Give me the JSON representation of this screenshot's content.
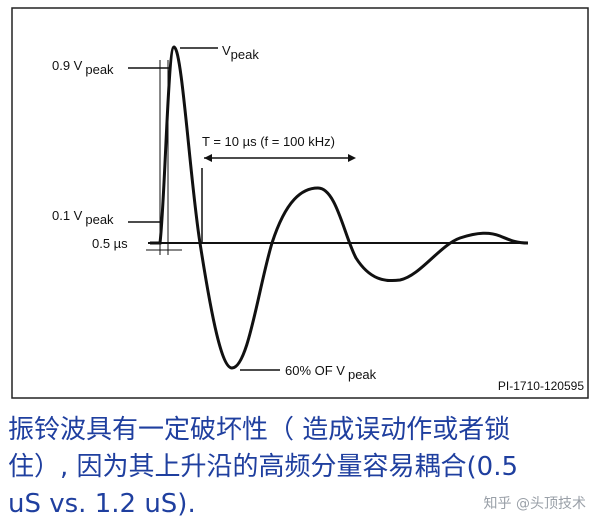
{
  "figure": {
    "labels": {
      "v_peak": {
        "text": "V",
        "sub": "peak"
      },
      "v09": {
        "text": "0.9 V",
        "sub": "peak"
      },
      "v01": {
        "text": "0.1 V",
        "sub": "peak"
      },
      "rise": {
        "text": "0.5 µs"
      },
      "period": {
        "text": "T = 10 µs (f = 100 kHz)"
      },
      "trough": {
        "text": "60% OF V",
        "sub": "peak"
      },
      "code": {
        "text": "PI-1710-120595"
      }
    }
  },
  "caption": {
    "lines": [
      "振铃波具有一定破坏性（ 造成误动作或者锁",
      "住）, 因为其上升沿的高频分量容易耦合(0.5",
      "uS vs. 1.2 uS)."
    ]
  },
  "watermark": "知乎 @头顶技术"
}
